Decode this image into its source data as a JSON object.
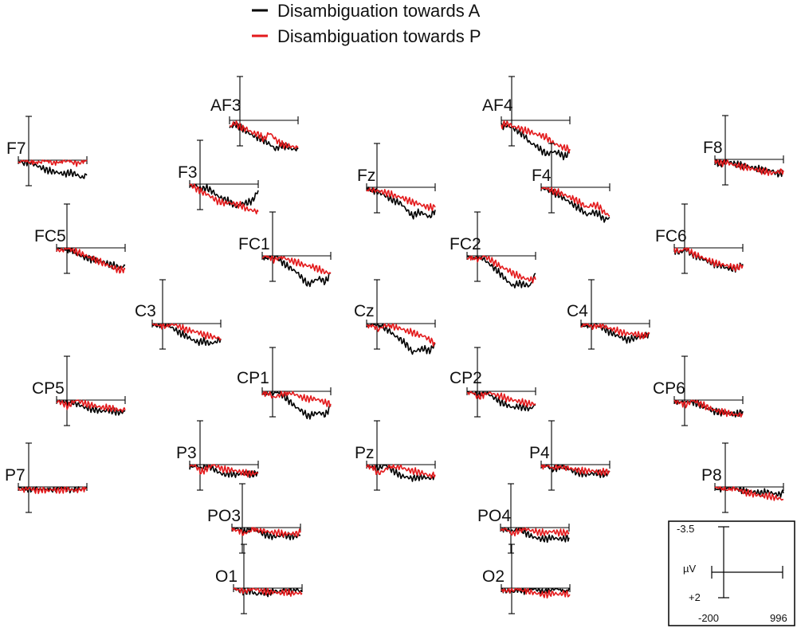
{
  "legend": [
    {
      "label": "Disambiguation towards A",
      "color": "#000000"
    },
    {
      "label": "Disambiguation towards P",
      "color": "#e31a1c"
    }
  ],
  "scale_box": {
    "y_top_label": "-3.5",
    "y_bottom_label": "+2",
    "unit_label": "µV",
    "x_left_label": "-200",
    "x_right_label": "996"
  },
  "chart_data": {
    "type": "line",
    "time_range_ms": [
      -200,
      996
    ],
    "ylim_uV": [
      -3.5,
      2
    ],
    "y_axis_note": "negative plotted up",
    "series_names": [
      "Disambiguation towards A",
      "Disambiguation towards P"
    ],
    "x_ms": [
      -200,
      -100,
      0,
      100,
      200,
      300,
      400,
      500,
      600,
      700,
      800,
      900,
      996
    ],
    "electrodes": [
      {
        "name": "AF3",
        "A": [
          -0.6,
          -0.3,
          -0.6,
          -0.9,
          -1.2,
          -1.4,
          -1.6,
          -1.9,
          -2.3,
          -2.0,
          -2.1,
          -2.3,
          -2.3
        ],
        "P": [
          -0.5,
          -0.2,
          -0.6,
          -0.7,
          -1.0,
          -1.1,
          -1.5,
          -1.0,
          -1.5,
          -1.9,
          -2.0,
          -2.1,
          -2.2
        ]
      },
      {
        "name": "AF4",
        "A": [
          -0.5,
          -0.4,
          -0.6,
          -0.9,
          -1.2,
          -1.8,
          -2.0,
          -2.4,
          -2.7,
          -2.5,
          -2.6,
          -2.9,
          -2.6
        ],
        "P": [
          -0.4,
          -0.2,
          -0.5,
          -0.6,
          -0.8,
          -0.9,
          -1.1,
          -1.2,
          -1.4,
          -1.8,
          -2.0,
          -2.2,
          -2.3
        ]
      },
      {
        "name": "F7",
        "A": [
          0.1,
          -0.2,
          -0.1,
          -0.4,
          -0.6,
          -0.8,
          -0.9,
          -1.0,
          -1.1,
          -1.0,
          -1.1,
          -1.4,
          -1.2
        ],
        "P": [
          0.1,
          0.0,
          -0.1,
          0.0,
          0.1,
          0.0,
          0.2,
          0.0,
          0.1,
          0.0,
          0.2,
          0.1,
          0.0
        ]
      },
      {
        "name": "F3",
        "A": [
          0.2,
          -0.1,
          -0.4,
          -0.3,
          -0.6,
          -1.0,
          -1.2,
          -1.4,
          -1.8,
          -1.6,
          -1.5,
          -1.3,
          -0.5
        ],
        "P": [
          0.0,
          -0.3,
          -0.6,
          -0.8,
          -1.1,
          -1.4,
          -1.5,
          -1.5,
          -1.6,
          -1.7,
          -2.0,
          -2.1,
          -2.2
        ]
      },
      {
        "name": "Fz",
        "A": [
          0.0,
          -0.2,
          -0.4,
          -0.6,
          -0.9,
          -1.1,
          -1.3,
          -1.8,
          -2.3,
          -2.0,
          -2.1,
          -2.4,
          -1.8
        ],
        "P": [
          0.1,
          -0.2,
          -0.3,
          -0.4,
          -0.5,
          -0.7,
          -0.8,
          -1.0,
          -1.2,
          -1.3,
          -1.5,
          -1.6,
          -1.6
        ]
      },
      {
        "name": "F4",
        "A": [
          0.0,
          -0.2,
          -0.4,
          -0.6,
          -0.9,
          -1.2,
          -1.5,
          -1.8,
          -2.2,
          -2.0,
          -2.1,
          -2.6,
          -2.4
        ],
        "P": [
          0.1,
          -0.1,
          -0.3,
          -0.4,
          -0.6,
          -0.8,
          -1.0,
          -1.3,
          -1.6,
          -1.4,
          -1.5,
          -2.0,
          -2.3
        ]
      },
      {
        "name": "F8",
        "A": [
          -0.2,
          -0.4,
          -0.1,
          -0.3,
          -0.4,
          -0.5,
          -0.6,
          -0.7,
          -0.8,
          -0.9,
          -0.9,
          -1.2,
          -1.0
        ],
        "P": [
          -0.1,
          -0.3,
          -0.2,
          -0.4,
          -0.5,
          -0.6,
          -0.7,
          -0.8,
          -0.9,
          -1.0,
          -1.1,
          -1.0,
          -0.9
        ]
      },
      {
        "name": "FC5",
        "A": [
          0.1,
          -0.1,
          0.1,
          -0.3,
          -0.6,
          -0.8,
          -0.9,
          -1.0,
          -1.1,
          -1.3,
          -1.4,
          -1.6,
          -1.4
        ],
        "P": [
          0.0,
          -0.2,
          0.0,
          -0.2,
          -0.4,
          -0.6,
          -0.8,
          -1.0,
          -1.2,
          -1.4,
          -1.6,
          -1.8,
          -1.7
        ]
      },
      {
        "name": "FC1",
        "A": [
          0.0,
          -0.1,
          0.2,
          -0.3,
          -0.7,
          -1.0,
          -1.3,
          -1.8,
          -2.3,
          -2.0,
          -1.8,
          -2.1,
          -1.4
        ],
        "P": [
          0.1,
          0.0,
          0.3,
          0.0,
          -0.2,
          -0.4,
          -0.5,
          -0.7,
          -0.8,
          -0.9,
          -1.1,
          -1.3,
          -1.4
        ]
      },
      {
        "name": "FC2",
        "A": [
          0.0,
          -0.1,
          0.2,
          -0.3,
          -0.7,
          -1.1,
          -1.5,
          -2.0,
          -2.4,
          -2.2,
          -2.3,
          -2.4,
          -1.4
        ],
        "P": [
          0.1,
          0.0,
          0.3,
          0.0,
          -0.3,
          -0.6,
          -0.9,
          -1.1,
          -1.4,
          -1.6,
          -1.8,
          -1.9,
          -1.9
        ]
      },
      {
        "name": "FC6",
        "A": [
          -0.2,
          -0.4,
          -0.1,
          -0.5,
          -0.7,
          -0.9,
          -1.1,
          -1.3,
          -1.4,
          -1.6,
          -1.7,
          -1.6,
          -1.3
        ],
        "P": [
          -0.1,
          -0.3,
          0.0,
          -0.4,
          -0.6,
          -0.8,
          -1.0,
          -1.2,
          -1.3,
          -1.4,
          -1.5,
          -1.6,
          -1.4
        ]
      },
      {
        "name": "C3",
        "A": [
          0.0,
          -0.1,
          0.1,
          -0.2,
          -0.5,
          -0.8,
          -1.0,
          -1.3,
          -1.5,
          -1.4,
          -1.6,
          -1.5,
          -1.2
        ],
        "P": [
          0.1,
          0.0,
          0.2,
          0.0,
          -0.1,
          -0.3,
          -0.5,
          -0.6,
          -0.7,
          -0.9,
          -1.0,
          -1.1,
          -1.2
        ]
      },
      {
        "name": "Cz",
        "A": [
          0.0,
          -0.1,
          0.2,
          -0.3,
          -0.6,
          -1.0,
          -1.3,
          -1.7,
          -2.3,
          -2.1,
          -2.0,
          -2.2,
          -1.6
        ],
        "P": [
          0.1,
          0.0,
          0.5,
          0.2,
          0.0,
          -0.3,
          -0.4,
          -0.6,
          -0.7,
          -0.9,
          -1.0,
          -1.3,
          -1.6
        ]
      },
      {
        "name": "C4",
        "A": [
          0.0,
          -0.1,
          0.2,
          -0.2,
          -0.4,
          -0.7,
          -0.9,
          -1.1,
          -1.3,
          -1.2,
          -1.1,
          -1.0,
          -0.8
        ],
        "P": [
          0.1,
          0.0,
          0.3,
          0.0,
          -0.2,
          -0.4,
          -0.5,
          -0.7,
          -0.8,
          -0.8,
          -0.9,
          -1.0,
          -0.8
        ]
      },
      {
        "name": "CP5",
        "A": [
          0.0,
          0.1,
          0.2,
          -0.2,
          -0.4,
          -0.6,
          -0.7,
          -0.8,
          -0.9,
          -0.8,
          -0.9,
          -1.0,
          -0.9
        ],
        "P": [
          0.1,
          0.2,
          0.5,
          0.1,
          -0.1,
          -0.3,
          -0.4,
          -0.5,
          -0.6,
          -0.6,
          -0.7,
          -0.8,
          -0.8
        ]
      },
      {
        "name": "CP1",
        "A": [
          0.0,
          0.0,
          0.2,
          -0.1,
          -0.5,
          -0.9,
          -1.3,
          -1.6,
          -2.0,
          -1.8,
          -1.7,
          -1.9,
          -1.2
        ],
        "P": [
          0.1,
          0.1,
          0.5,
          0.3,
          0.1,
          -0.1,
          -0.3,
          -0.5,
          -0.6,
          -0.6,
          -0.7,
          -0.9,
          -1.0
        ]
      },
      {
        "name": "CP2",
        "A": [
          0.0,
          0.0,
          0.3,
          0.0,
          -0.3,
          -0.6,
          -0.9,
          -1.1,
          -1.3,
          -1.2,
          -1.3,
          -1.4,
          -1.1
        ],
        "P": [
          0.1,
          0.1,
          0.5,
          0.2,
          -0.1,
          -0.3,
          -0.4,
          -0.6,
          -0.7,
          -0.8,
          -0.9,
          -1.0,
          -1.0
        ]
      },
      {
        "name": "CP6",
        "A": [
          0.1,
          0.0,
          0.2,
          -0.1,
          -0.3,
          -0.5,
          -0.7,
          -0.9,
          -1.0,
          -1.0,
          -1.1,
          -1.1,
          -0.9
        ],
        "P": [
          0.1,
          0.1,
          0.4,
          0.1,
          -0.2,
          -0.4,
          -0.6,
          -0.8,
          -0.9,
          -1.0,
          -1.1,
          -1.2,
          -1.1
        ]
      },
      {
        "name": "P7",
        "A": [
          0.0,
          -0.1,
          0.2,
          0.1,
          0.2,
          0.0,
          0.2,
          0.1,
          0.0,
          0.2,
          0.1,
          0.2,
          0.0
        ],
        "P": [
          0.0,
          -0.2,
          -0.1,
          -0.3,
          -0.2,
          -0.3,
          -0.2,
          -0.3,
          -0.2,
          -0.2,
          -0.3,
          -0.1,
          -0.1
        ]
      },
      {
        "name": "P3",
        "A": [
          -0.1,
          0.0,
          0.3,
          0.1,
          -0.3,
          -0.6,
          -0.8,
          -0.7,
          -0.8,
          -0.7,
          -0.7,
          -0.8,
          -0.6
        ],
        "P": [
          0.0,
          0.1,
          0.6,
          0.3,
          0.0,
          -0.2,
          -0.4,
          -0.4,
          -0.5,
          -0.6,
          -0.7,
          -0.7,
          -0.7
        ]
      },
      {
        "name": "Pz",
        "A": [
          0.0,
          0.0,
          0.3,
          0.1,
          -0.3,
          -0.6,
          -0.9,
          -1.0,
          -1.1,
          -1.0,
          -1.0,
          -1.1,
          -0.9
        ],
        "P": [
          0.1,
          0.1,
          0.7,
          0.5,
          0.1,
          -0.1,
          -0.2,
          -0.4,
          -0.5,
          -0.6,
          -0.7,
          -0.9,
          -0.8
        ]
      },
      {
        "name": "P4",
        "A": [
          0.0,
          0.1,
          0.4,
          0.2,
          -0.2,
          -0.4,
          -0.6,
          -0.7,
          -0.8,
          -0.7,
          -0.7,
          -0.8,
          -0.6
        ],
        "P": [
          0.1,
          0.0,
          0.3,
          0.1,
          -0.2,
          -0.3,
          -0.4,
          -0.5,
          -0.5,
          -0.5,
          -0.6,
          -0.6,
          -0.5
        ]
      },
      {
        "name": "P8",
        "A": [
          0.0,
          -0.1,
          0.1,
          -0.1,
          -0.1,
          -0.3,
          -0.4,
          -0.4,
          -0.5,
          -0.4,
          -0.5,
          -0.6,
          -0.5
        ],
        "P": [
          0.0,
          -0.1,
          0.1,
          -0.1,
          -0.2,
          -0.4,
          -0.5,
          -0.6,
          -0.7,
          -0.7,
          -0.8,
          -0.9,
          -1.0
        ]
      },
      {
        "name": "PO3",
        "A": [
          0.0,
          0.1,
          0.3,
          0.1,
          -0.2,
          -0.4,
          -0.6,
          -0.7,
          -0.7,
          -0.6,
          -0.7,
          -0.7,
          -0.6
        ],
        "P": [
          0.0,
          0.1,
          0.5,
          0.3,
          0.0,
          -0.2,
          -0.3,
          -0.4,
          -0.4,
          -0.5,
          -0.5,
          -0.5,
          -0.4
        ]
      },
      {
        "name": "PO4",
        "A": [
          0.0,
          0.1,
          0.3,
          0.1,
          -0.3,
          -0.6,
          -0.8,
          -0.9,
          -0.9,
          -0.8,
          -0.9,
          -0.9,
          -0.8
        ],
        "P": [
          0.0,
          0.1,
          0.5,
          0.3,
          0.0,
          -0.2,
          -0.3,
          -0.4,
          -0.4,
          -0.3,
          -0.4,
          -0.4,
          -0.4
        ]
      },
      {
        "name": "O1",
        "A": [
          0.0,
          0.2,
          0.3,
          0.2,
          0.5,
          0.3,
          0.4,
          0.2,
          0.3,
          0.1,
          0.2,
          0.1,
          0.3
        ],
        "P": [
          0.0,
          0.1,
          0.2,
          0.0,
          -0.1,
          -0.2,
          -0.3,
          -0.3,
          -0.4,
          -0.3,
          -0.4,
          -0.4,
          -0.4
        ]
      },
      {
        "name": "O2",
        "A": [
          0.0,
          0.2,
          0.3,
          0.1,
          0.2,
          0.0,
          -0.1,
          -0.2,
          -0.1,
          -0.1,
          0.0,
          -0.1,
          0.1
        ],
        "P": [
          0.0,
          0.1,
          0.2,
          0.0,
          -0.1,
          -0.3,
          -0.4,
          -0.5,
          -0.5,
          -0.4,
          -0.5,
          -0.4,
          -0.5
        ]
      }
    ]
  }
}
